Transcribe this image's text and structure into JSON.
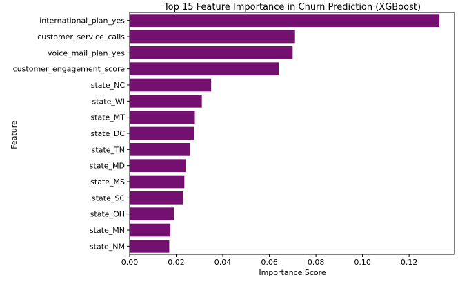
{
  "chart_data": {
    "type": "bar",
    "orientation": "horizontal",
    "title": "Top 15 Feature Importance in Churn Prediction (XGBoost)",
    "xlabel": "Importance Score",
    "ylabel": "Feature",
    "categories": [
      "international_plan_yes",
      "customer_service_calls",
      "voice_mail_plan_yes",
      "customer_engagement_score",
      "state_NC",
      "state_WI",
      "state_MT",
      "state_DC",
      "state_TN",
      "state_MD",
      "state_MS",
      "state_SC",
      "state_OH",
      "state_MN",
      "state_NM"
    ],
    "values": [
      0.133,
      0.071,
      0.07,
      0.064,
      0.035,
      0.031,
      0.028,
      0.0278,
      0.026,
      0.024,
      0.0235,
      0.023,
      0.019,
      0.0175,
      0.017
    ],
    "xlim": [
      0,
      0.1395
    ],
    "xticks": [
      0.0,
      0.02,
      0.04,
      0.06,
      0.08,
      0.1,
      0.12
    ],
    "xtick_labels": [
      "0.00",
      "0.02",
      "0.04",
      "0.06",
      "0.08",
      "0.10",
      "0.12"
    ],
    "bar_color": "#74106f",
    "grid": false
  }
}
